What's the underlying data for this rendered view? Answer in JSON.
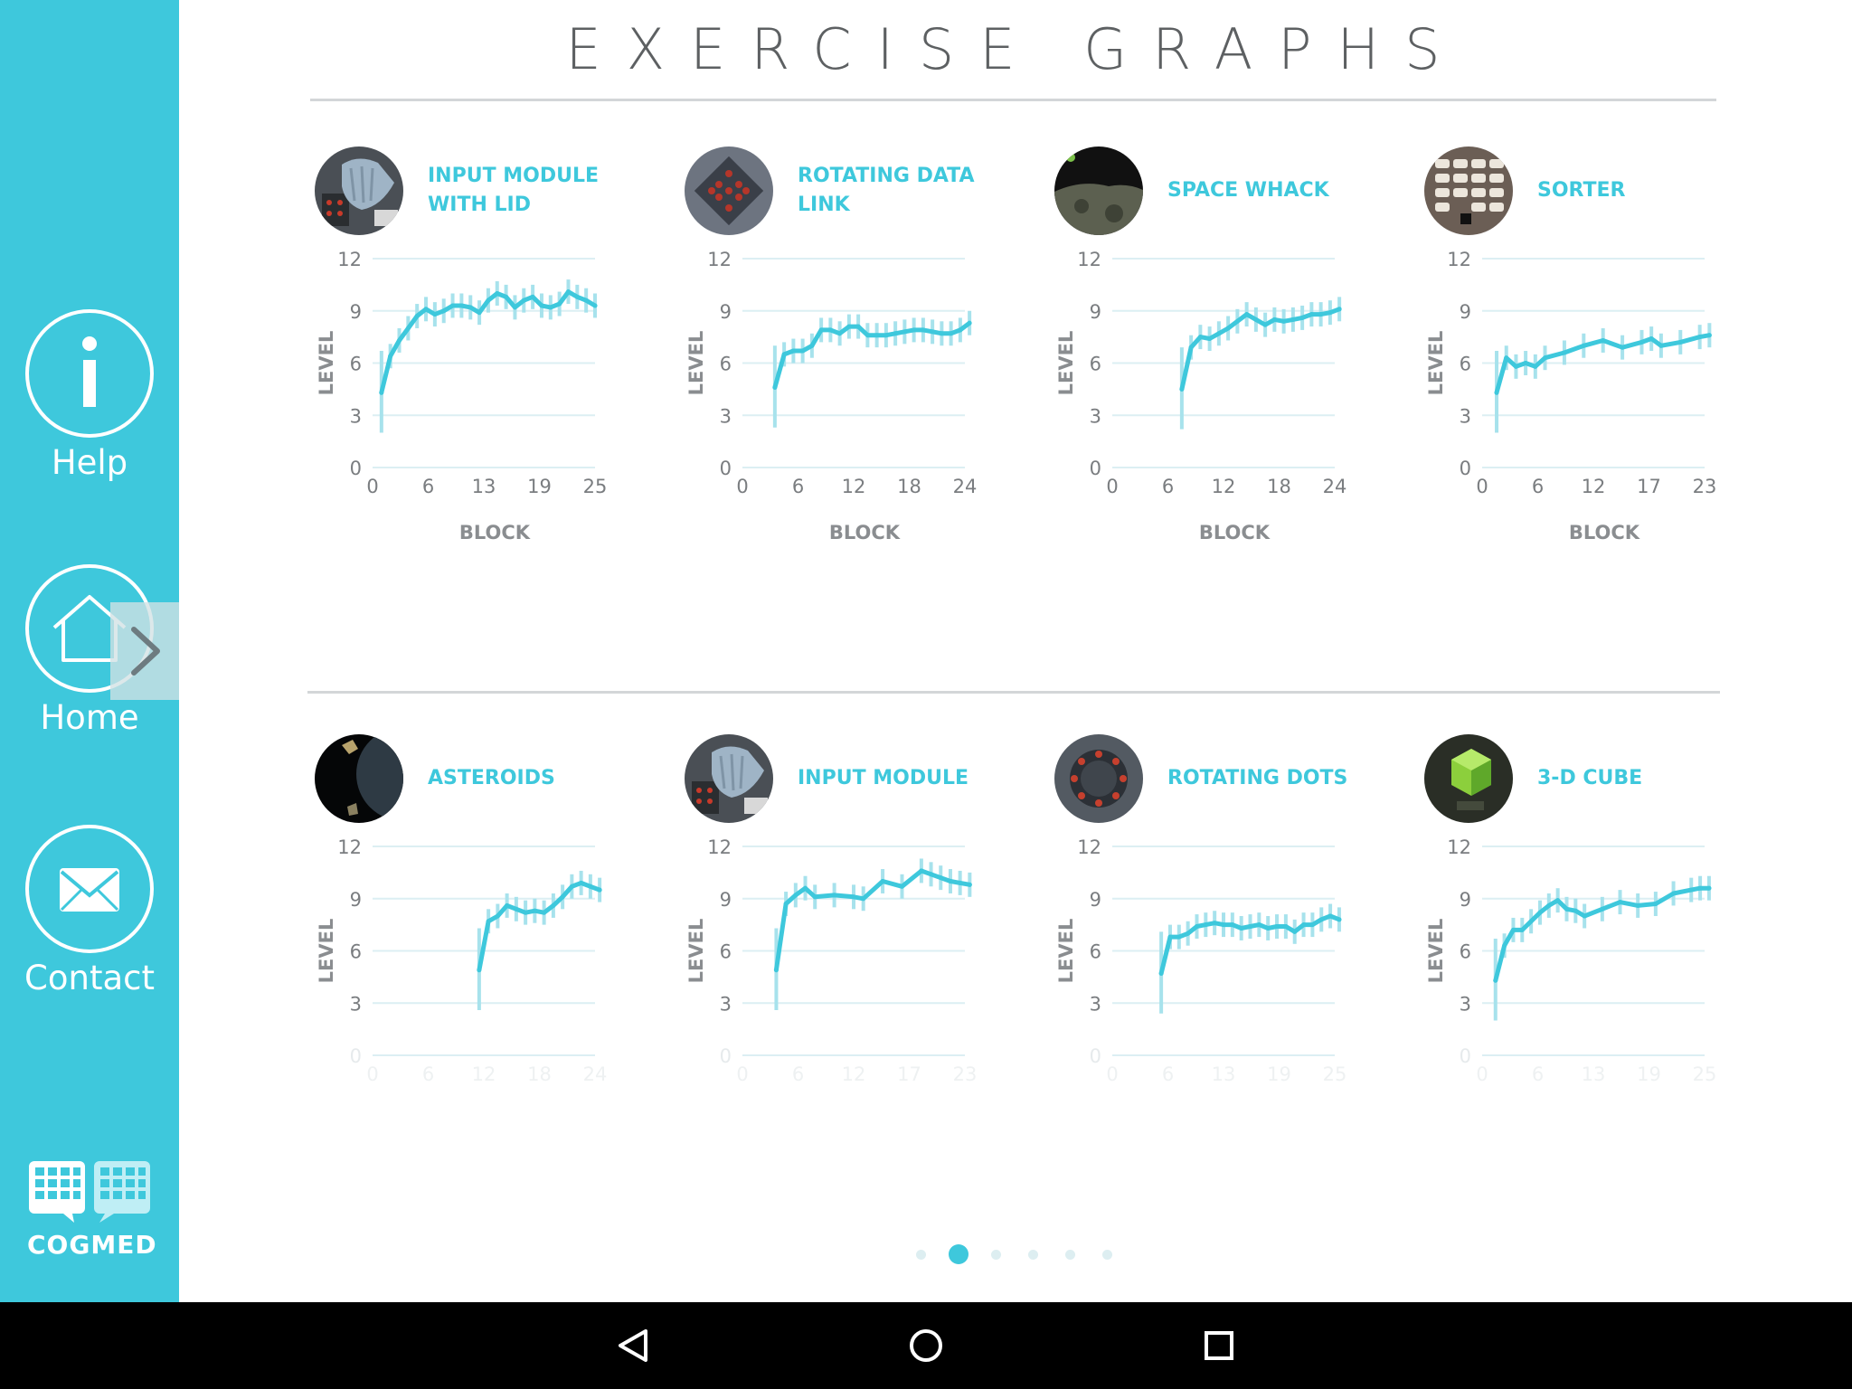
{
  "page": {
    "title": "EXERCISE GRAPHS"
  },
  "sidebar": {
    "items": [
      {
        "label": "Help",
        "icon": "info-icon"
      },
      {
        "label": "Home",
        "icon": "home-icon"
      },
      {
        "label": "Contact",
        "icon": "mail-icon"
      }
    ],
    "logo_text": "COGMED",
    "expand_icon": "chevron-right-icon"
  },
  "colors": {
    "accent": "#3ec8dc",
    "text": "#5d6062",
    "grid": "#dceff3"
  },
  "exercises": [
    {
      "title": "INPUT MODULE WITH LID",
      "thumb": "glove-keypad",
      "chart_data": {
        "type": "line",
        "xlabel": "BLOCK",
        "ylabel": "LEVEL",
        "xticks": [
          "0",
          "6",
          "13",
          "19",
          "25"
        ],
        "yticks": [
          "0",
          "3",
          "6",
          "9",
          "12"
        ],
        "xlim": [
          0,
          25
        ],
        "ylim": [
          0,
          12
        ],
        "x": [
          1,
          2,
          3,
          4,
          5,
          6,
          7,
          8,
          9,
          10,
          11,
          12,
          13,
          14,
          15,
          16,
          17,
          18,
          19,
          20,
          21,
          22,
          23,
          24,
          25
        ],
        "values": [
          4.3,
          6.4,
          7.3,
          8.0,
          8.7,
          9.1,
          8.8,
          9.0,
          9.3,
          9.3,
          9.2,
          8.9,
          9.6,
          10.0,
          9.8,
          9.2,
          9.6,
          9.8,
          9.3,
          9.2,
          9.4,
          10.1,
          9.8,
          9.6,
          9.3
        ]
      }
    },
    {
      "title": "ROTATING DATA LINK",
      "thumb": "dot-grid-panel",
      "chart_data": {
        "type": "line",
        "xlabel": "BLOCK",
        "ylabel": "LEVEL",
        "xticks": [
          "0",
          "6",
          "12",
          "18",
          "24"
        ],
        "yticks": [
          "0",
          "3",
          "6",
          "9",
          "12"
        ],
        "xlim": [
          0,
          24
        ],
        "ylim": [
          0,
          12
        ],
        "x": [
          3.5,
          4.5,
          5.5,
          6.5,
          7.5,
          8.5,
          9.5,
          10.5,
          11.5,
          12.5,
          13.5,
          14.5,
          15.5,
          16.5,
          17.5,
          18.5,
          19.5,
          20.5,
          21.5,
          22.5,
          23.5,
          24.5
        ],
        "values": [
          4.6,
          6.5,
          6.7,
          6.7,
          7.0,
          7.9,
          7.9,
          7.7,
          8.1,
          8.1,
          7.6,
          7.6,
          7.6,
          7.7,
          7.8,
          7.9,
          7.9,
          7.8,
          7.7,
          7.7,
          7.9,
          8.3
        ]
      }
    },
    {
      "title": "SPACE WHACK",
      "thumb": "moon-surface",
      "chart_data": {
        "type": "line",
        "xlabel": "BLOCK",
        "ylabel": "LEVEL",
        "xticks": [
          "0",
          "6",
          "12",
          "18",
          "24"
        ],
        "yticks": [
          "0",
          "3",
          "6",
          "9",
          "12"
        ],
        "xlim": [
          0,
          24
        ],
        "ylim": [
          0,
          12
        ],
        "x": [
          7.5,
          8.5,
          9.5,
          10.5,
          11.5,
          12.5,
          13.5,
          14.5,
          15.5,
          16.5,
          17.5,
          18.5,
          19.5,
          20.5,
          21.5,
          22.5,
          23.5,
          24.5
        ],
        "values": [
          4.5,
          6.9,
          7.5,
          7.4,
          7.7,
          8.0,
          8.4,
          8.8,
          8.5,
          8.2,
          8.5,
          8.4,
          8.5,
          8.6,
          8.8,
          8.8,
          8.9,
          9.1
        ]
      }
    },
    {
      "title": "SORTER",
      "thumb": "sorter-grid",
      "chart_data": {
        "type": "line",
        "xlabel": "BLOCK",
        "ylabel": "LEVEL",
        "xticks": [
          "0",
          "6",
          "12",
          "17",
          "23"
        ],
        "yticks": [
          "0",
          "3",
          "6",
          "9",
          "12"
        ],
        "xlim": [
          0,
          23
        ],
        "ylim": [
          0,
          12
        ],
        "x": [
          1.5,
          2.5,
          3.5,
          4.5,
          5.5,
          6.5,
          8.5,
          10.5,
          12.5,
          14.5,
          16.5,
          17.5,
          18.5,
          20.5,
          22.5,
          23.5
        ],
        "values": [
          4.3,
          6.3,
          5.8,
          6.0,
          5.8,
          6.3,
          6.6,
          7.0,
          7.3,
          6.9,
          7.2,
          7.4,
          7.0,
          7.2,
          7.5,
          7.6
        ]
      }
    },
    {
      "title": "ASTEROIDS",
      "thumb": "asteroid-space",
      "chart_data": {
        "type": "line",
        "xlabel": "",
        "ylabel": "LEVEL",
        "xticks": [
          "0",
          "6",
          "12",
          "18",
          "24"
        ],
        "yticks": [
          "0",
          "3",
          "6",
          "9",
          "12"
        ],
        "xlim": [
          0,
          24
        ],
        "ylim": [
          0,
          12
        ],
        "x": [
          11.5,
          12.5,
          13.5,
          14.5,
          15.5,
          16.5,
          17.5,
          18.5,
          19.5,
          20.5,
          21.5,
          22.5,
          23.5,
          24.5
        ],
        "values": [
          4.9,
          7.7,
          8.0,
          8.6,
          8.4,
          8.2,
          8.3,
          8.2,
          8.6,
          9.1,
          9.7,
          9.9,
          9.7,
          9.5
        ]
      }
    },
    {
      "title": "INPUT MODULE",
      "thumb": "glove-keypad",
      "chart_data": {
        "type": "line",
        "xlabel": "",
        "ylabel": "LEVEL",
        "xticks": [
          "0",
          "6",
          "12",
          "17",
          "23"
        ],
        "yticks": [
          "0",
          "3",
          "6",
          "9",
          "12"
        ],
        "xlim": [
          0,
          23
        ],
        "ylim": [
          0,
          12
        ],
        "x": [
          3.5,
          4.5,
          5.5,
          6.5,
          7.5,
          9.5,
          11.5,
          12.5,
          14.5,
          16.5,
          18.5,
          19.5,
          20.5,
          21.5,
          22.5,
          23.5
        ],
        "values": [
          4.9,
          8.7,
          9.2,
          9.6,
          9.1,
          9.2,
          9.1,
          9.0,
          10.0,
          9.7,
          10.6,
          10.4,
          10.2,
          10.0,
          9.9,
          9.8
        ]
      }
    },
    {
      "title": "ROTATING DOTS",
      "thumb": "dot-ring",
      "chart_data": {
        "type": "line",
        "xlabel": "",
        "ylabel": "LEVEL",
        "xticks": [
          "0",
          "6",
          "13",
          "19",
          "25"
        ],
        "yticks": [
          "0",
          "3",
          "6",
          "9",
          "12"
        ],
        "xlim": [
          0,
          25
        ],
        "ylim": [
          0,
          12
        ],
        "x": [
          5.5,
          6.5,
          7.5,
          8.5,
          9.5,
          10.5,
          11.5,
          12.5,
          13.5,
          14.5,
          15.5,
          16.5,
          17.5,
          18.5,
          19.5,
          20.5,
          21.5,
          22.5,
          23.5,
          24.5,
          25.5
        ],
        "values": [
          4.7,
          6.8,
          6.8,
          7.0,
          7.4,
          7.5,
          7.6,
          7.5,
          7.5,
          7.3,
          7.4,
          7.5,
          7.3,
          7.4,
          7.4,
          7.1,
          7.5,
          7.5,
          7.8,
          8.0,
          7.8
        ]
      }
    },
    {
      "title": "3-D CUBE",
      "thumb": "green-cube",
      "chart_data": {
        "type": "line",
        "xlabel": "",
        "ylabel": "LEVEL",
        "xticks": [
          "0",
          "6",
          "13",
          "19",
          "25"
        ],
        "yticks": [
          "0",
          "3",
          "6",
          "9",
          "12"
        ],
        "xlim": [
          0,
          25
        ],
        "ylim": [
          0,
          12
        ],
        "x": [
          1.5,
          2.5,
          3.5,
          4.5,
          5.5,
          6.5,
          7.5,
          8.5,
          9.5,
          10.5,
          11.5,
          13.5,
          15.5,
          17.5,
          19.5,
          21.5,
          23.5,
          24.5,
          25.5
        ],
        "values": [
          4.3,
          6.3,
          7.2,
          7.2,
          7.7,
          8.2,
          8.6,
          8.9,
          8.4,
          8.3,
          8.0,
          8.4,
          8.8,
          8.6,
          8.7,
          9.3,
          9.5,
          9.6,
          9.6
        ]
      }
    }
  ],
  "pager": {
    "count": 6,
    "active": 1
  },
  "navbar": {
    "buttons": [
      "back-icon",
      "home-circle-icon",
      "recents-icon"
    ]
  }
}
